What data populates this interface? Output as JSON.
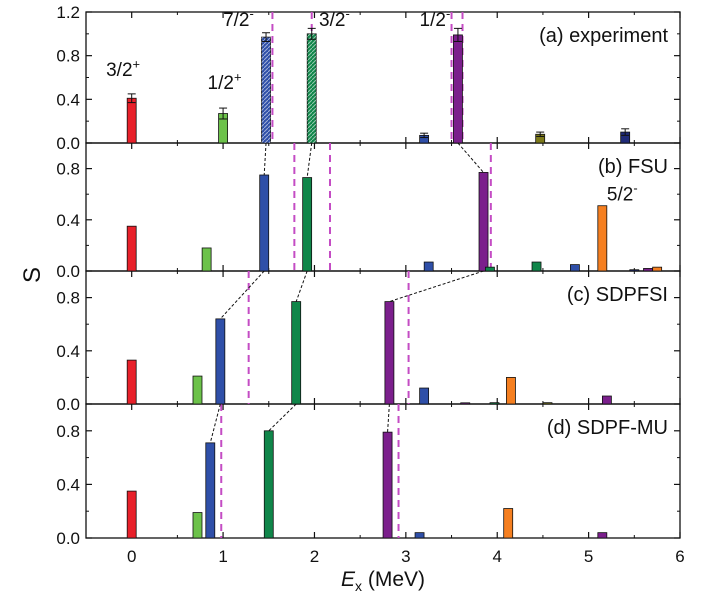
{
  "chart_data": {
    "type": "bar",
    "xlabel_symbol": "E",
    "xlabel_sub": "x",
    "xlabel_unit": " (MeV)",
    "ylabel": "S",
    "xlim": [
      -0.5,
      6
    ],
    "x_ticks": [
      "0",
      "1",
      "2",
      "3",
      "4",
      "5",
      "6"
    ],
    "colors": {
      "red": "#e8202a",
      "lightgreen": "#6cc24a",
      "blue": "#2f4fa8",
      "green": "#10864a",
      "purple": "#7b1f8c",
      "olive": "#7d7a1a",
      "navy": "#1f2a78",
      "orange": "#f57f20",
      "dashed": "#c44cc4"
    },
    "panels": [
      {
        "label": "(a) experiment",
        "ylim": [
          0,
          1.2
        ],
        "yticks": [
          "0.0",
          "0.4",
          "0.8",
          "1.2"
        ],
        "bars": [
          {
            "x": 0.0,
            "value": 0.41,
            "err": 0.04,
            "color": "red"
          },
          {
            "x": 1.0,
            "value": 0.27,
            "err": 0.05,
            "color": "lightgreen"
          },
          {
            "x": 1.47,
            "value": 0.97,
            "err": 0.04,
            "color": "blue",
            "hatched": true
          },
          {
            "x": 1.97,
            "value": 1.0,
            "err": 0.05,
            "color": "green",
            "hatched": true
          },
          {
            "x": 3.2,
            "value": 0.07,
            "err": 0.02,
            "color": "blue"
          },
          {
            "x": 3.57,
            "value": 0.99,
            "err": 0.06,
            "color": "purple"
          },
          {
            "x": 4.47,
            "value": 0.08,
            "err": 0.02,
            "color": "olive"
          },
          {
            "x": 5.4,
            "value": 0.1,
            "err": 0.03,
            "color": "navy"
          }
        ],
        "dashed_x": [
          1.54,
          1.97,
          3.5,
          3.62
        ],
        "annotations": [
          {
            "base": "3/2",
            "sup": "+",
            "x": -0.28,
            "value": 0.54
          },
          {
            "base": "1/2",
            "sup": "+",
            "x": 0.83,
            "value": 0.42
          },
          {
            "base": "7/2",
            "sup": "-",
            "x": 1.0,
            "value": 1.0
          },
          {
            "base": "3/2",
            "sup": "-",
            "x": 2.05,
            "value": 1.0
          },
          {
            "base": "1/2",
            "sup": "-",
            "x": 3.15,
            "value": 1.0
          }
        ]
      },
      {
        "label": "(b) FSU",
        "ylim": [
          0,
          1.0
        ],
        "yticks": [
          "0.0",
          "0.4",
          "0.8"
        ],
        "bars": [
          {
            "x": 0.0,
            "value": 0.35,
            "color": "red"
          },
          {
            "x": 0.82,
            "value": 0.18,
            "color": "lightgreen"
          },
          {
            "x": 1.45,
            "value": 0.75,
            "color": "blue"
          },
          {
            "x": 1.92,
            "value": 0.73,
            "color": "green"
          },
          {
            "x": 3.25,
            "value": 0.07,
            "color": "blue"
          },
          {
            "x": 3.85,
            "value": 0.77,
            "color": "purple"
          },
          {
            "x": 3.92,
            "value": 0.03,
            "color": "green"
          },
          {
            "x": 4.43,
            "value": 0.07,
            "color": "green"
          },
          {
            "x": 4.85,
            "value": 0.05,
            "color": "blue"
          },
          {
            "x": 5.15,
            "value": 0.51,
            "color": "orange"
          },
          {
            "x": 5.5,
            "value": 0.01,
            "color": "navy"
          },
          {
            "x": 5.65,
            "value": 0.02,
            "color": "purple"
          },
          {
            "x": 5.75,
            "value": 0.03,
            "color": "orange"
          }
        ],
        "dashed_x": [
          1.78,
          2.17,
          3.93
        ],
        "annotations": [
          {
            "base": "5/2",
            "sup": "-",
            "x": 5.2,
            "value": 0.49
          }
        ]
      },
      {
        "label": "(c) SDPFSI",
        "ylim": [
          0,
          1.0
        ],
        "yticks": [
          "0.0",
          "0.4",
          "0.8"
        ],
        "bars": [
          {
            "x": 0.0,
            "value": 0.33,
            "color": "red"
          },
          {
            "x": 0.72,
            "value": 0.21,
            "color": "lightgreen"
          },
          {
            "x": 0.97,
            "value": 0.64,
            "color": "blue"
          },
          {
            "x": 1.8,
            "value": 0.77,
            "color": "green"
          },
          {
            "x": 2.82,
            "value": 0.77,
            "color": "purple"
          },
          {
            "x": 3.2,
            "value": 0.12,
            "color": "blue"
          },
          {
            "x": 3.65,
            "value": 0.005,
            "color": "purple"
          },
          {
            "x": 3.97,
            "value": 0.01,
            "color": "green"
          },
          {
            "x": 4.15,
            "value": 0.2,
            "color": "orange"
          },
          {
            "x": 4.55,
            "value": 0.01,
            "color": "olive"
          },
          {
            "x": 5.2,
            "value": 0.06,
            "color": "purple"
          }
        ],
        "dashed_x": [
          1.28,
          3.03
        ],
        "annotations": []
      },
      {
        "label": "(d) SDPF-MU",
        "ylim": [
          0,
          1.0
        ],
        "yticks": [
          "0.0",
          "0.4",
          "0.8"
        ],
        "bars": [
          {
            "x": 0.0,
            "value": 0.35,
            "color": "red"
          },
          {
            "x": 0.72,
            "value": 0.19,
            "color": "lightgreen"
          },
          {
            "x": 0.86,
            "value": 0.71,
            "color": "blue"
          },
          {
            "x": 1.5,
            "value": 0.8,
            "color": "green"
          },
          {
            "x": 2.8,
            "value": 0.79,
            "color": "purple"
          },
          {
            "x": 3.15,
            "value": 0.04,
            "color": "blue"
          },
          {
            "x": 4.12,
            "value": 0.22,
            "color": "orange"
          },
          {
            "x": 5.15,
            "value": 0.04,
            "color": "purple"
          }
        ],
        "dashed_x": [
          0.98,
          2.92
        ],
        "annotations": []
      }
    ],
    "connectors": [
      {
        "from_panel": 0,
        "from_x": 1.47,
        "to_panel": 1,
        "to_x": 1.45
      },
      {
        "from_panel": 0,
        "from_x": 1.97,
        "to_panel": 1,
        "to_x": 1.92
      },
      {
        "from_panel": 0,
        "from_x": 3.57,
        "to_panel": 1,
        "to_x": 3.85
      },
      {
        "from_panel": 1,
        "from_x": 1.45,
        "to_panel": 2,
        "to_x": 0.97
      },
      {
        "from_panel": 1,
        "from_x": 1.92,
        "to_panel": 2,
        "to_x": 1.8
      },
      {
        "from_panel": 1,
        "from_x": 3.85,
        "to_panel": 2,
        "to_x": 2.82
      },
      {
        "from_panel": 2,
        "from_x": 0.97,
        "to_panel": 3,
        "to_x": 0.86
      },
      {
        "from_panel": 2,
        "from_x": 1.8,
        "to_panel": 3,
        "to_x": 1.5
      },
      {
        "from_panel": 2,
        "from_x": 2.82,
        "to_panel": 3,
        "to_x": 2.8
      }
    ]
  }
}
